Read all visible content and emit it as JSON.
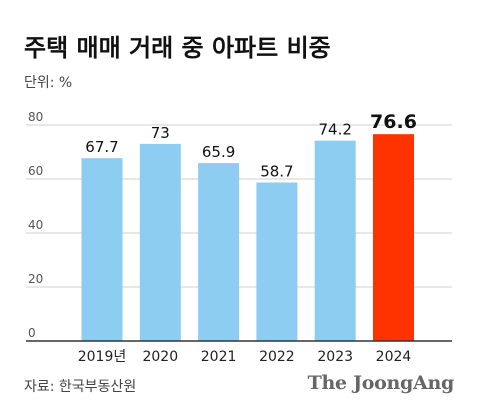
{
  "title": "주택 매매 거래 중 아파트 비중",
  "unit": "단위: %",
  "source": "자료: 한국부동산원",
  "brand": "The JoongAng",
  "colors": {
    "bar": "#8ECDF2",
    "highlight": "#FF3300",
    "grid": "#D0D0D0",
    "axis": "#333333"
  },
  "chart_data": {
    "type": "bar",
    "title": "주택 매매 거래 중 아파트 비중",
    "categories": [
      "2019년",
      "2020",
      "2021",
      "2022",
      "2023",
      "2024"
    ],
    "values": [
      67.7,
      73,
      65.9,
      58.7,
      74.2,
      76.6
    ],
    "value_labels": [
      "67.7",
      "73",
      "65.9",
      "58.7",
      "74.2",
      "76.6"
    ],
    "highlight_index": 5,
    "yticks": [
      0,
      20,
      40,
      60,
      80
    ],
    "ylim": [
      0,
      80
    ],
    "grid": true,
    "xlabel": "",
    "ylabel": ""
  }
}
